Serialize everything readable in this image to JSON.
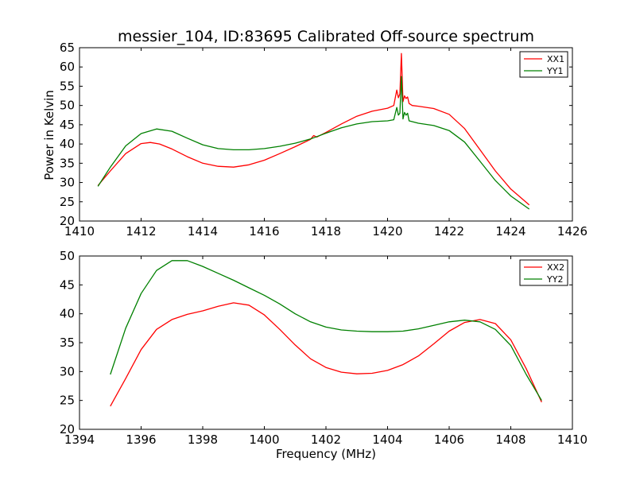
{
  "title": "messier_104, ID:83695 Calibrated Off-source spectrum",
  "ylabel": "Power in Kelvin",
  "xlabel": "Frequency (MHz)",
  "colors": {
    "red": "#ff0000",
    "green": "#008000",
    "axis": "#000000"
  },
  "chart_data": [
    {
      "type": "line",
      "title": "messier_104, ID:83695 Calibrated Off-source spectrum",
      "xlabel": "",
      "ylabel": "Power in Kelvin",
      "xlim": [
        1410,
        1426
      ],
      "ylim": [
        20,
        65
      ],
      "xticks": [
        1410,
        1412,
        1414,
        1416,
        1418,
        1420,
        1422,
        1424,
        1426
      ],
      "yticks": [
        20,
        25,
        30,
        35,
        40,
        45,
        50,
        55,
        60,
        65
      ],
      "legend": "top-right",
      "grid": false,
      "series": [
        {
          "name": "XX1",
          "color": "#ff0000",
          "x": [
            1410.6,
            1411.0,
            1411.5,
            1412.0,
            1412.3,
            1412.6,
            1413.0,
            1413.5,
            1414.0,
            1414.5,
            1415.0,
            1415.5,
            1416.0,
            1416.5,
            1417.0,
            1417.5,
            1417.6,
            1417.7,
            1418.0,
            1418.5,
            1419.0,
            1419.5,
            1420.0,
            1420.2,
            1420.3,
            1420.35,
            1420.4,
            1420.45,
            1420.5,
            1420.55,
            1420.6,
            1420.65,
            1420.7,
            1420.8,
            1421.0,
            1421.5,
            1422.0,
            1422.5,
            1423.0,
            1423.5,
            1424.0,
            1424.6
          ],
          "y": [
            29.2,
            33.0,
            37.5,
            40.1,
            40.4,
            40.0,
            38.7,
            36.7,
            35.0,
            34.2,
            34.0,
            34.6,
            35.8,
            37.5,
            39.3,
            41.2,
            42.2,
            41.8,
            43.0,
            45.2,
            47.2,
            48.5,
            49.3,
            50.0,
            54.0,
            52.0,
            53.0,
            63.5,
            51.0,
            52.5,
            51.8,
            52.2,
            50.5,
            50.0,
            49.8,
            49.2,
            47.7,
            44.0,
            38.5,
            33.0,
            28.3,
            24.2
          ]
        },
        {
          "name": "YY1",
          "color": "#008000",
          "x": [
            1410.6,
            1411.0,
            1411.5,
            1412.0,
            1412.5,
            1413.0,
            1413.5,
            1414.0,
            1414.5,
            1415.0,
            1415.5,
            1416.0,
            1416.5,
            1417.0,
            1417.5,
            1418.0,
            1418.5,
            1419.0,
            1419.5,
            1420.0,
            1420.2,
            1420.3,
            1420.35,
            1420.4,
            1420.45,
            1420.5,
            1420.55,
            1420.6,
            1420.65,
            1420.7,
            1420.8,
            1421.0,
            1421.5,
            1422.0,
            1422.5,
            1423.0,
            1423.5,
            1424.0,
            1424.6
          ],
          "y": [
            29.0,
            34.0,
            39.5,
            42.7,
            43.9,
            43.3,
            41.5,
            39.8,
            38.8,
            38.5,
            38.5,
            38.8,
            39.4,
            40.2,
            41.3,
            42.8,
            44.2,
            45.2,
            45.8,
            46.0,
            46.3,
            49.5,
            47.5,
            48.0,
            57.5,
            46.5,
            48.2,
            47.5,
            48.0,
            46.0,
            45.8,
            45.4,
            44.8,
            43.5,
            40.5,
            35.5,
            30.5,
            26.5,
            23.1
          ]
        }
      ]
    },
    {
      "type": "line",
      "title": "",
      "xlabel": "Frequency (MHz)",
      "ylabel": "",
      "xlim": [
        1394,
        1410
      ],
      "ylim": [
        20,
        50
      ],
      "xticks": [
        1394,
        1396,
        1398,
        1400,
        1402,
        1404,
        1406,
        1408,
        1410
      ],
      "yticks": [
        20,
        25,
        30,
        35,
        40,
        45,
        50
      ],
      "legend": "top-right",
      "grid": false,
      "series": [
        {
          "name": "XX2",
          "color": "#ff0000",
          "x": [
            1395.0,
            1395.5,
            1396.0,
            1396.5,
            1397.0,
            1397.5,
            1398.0,
            1398.5,
            1399.0,
            1399.5,
            1400.0,
            1400.5,
            1401.0,
            1401.5,
            1402.0,
            1402.5,
            1403.0,
            1403.5,
            1404.0,
            1404.5,
            1405.0,
            1405.5,
            1406.0,
            1406.5,
            1407.0,
            1407.5,
            1408.0,
            1408.5,
            1409.0
          ],
          "y": [
            24.0,
            28.8,
            33.8,
            37.3,
            39.0,
            39.9,
            40.5,
            41.3,
            41.9,
            41.5,
            39.8,
            37.3,
            34.6,
            32.2,
            30.7,
            29.9,
            29.6,
            29.7,
            30.2,
            31.2,
            32.7,
            34.8,
            37.0,
            38.5,
            39.0,
            38.3,
            35.5,
            30.5,
            24.7
          ]
        },
        {
          "name": "YY2",
          "color": "#008000",
          "x": [
            1395.0,
            1395.5,
            1396.0,
            1396.5,
            1397.0,
            1397.5,
            1398.0,
            1398.5,
            1399.0,
            1399.5,
            1400.0,
            1400.5,
            1401.0,
            1401.5,
            1402.0,
            1402.5,
            1403.0,
            1403.5,
            1404.0,
            1404.5,
            1405.0,
            1405.5,
            1406.0,
            1406.5,
            1407.0,
            1407.5,
            1408.0,
            1408.5,
            1409.0
          ],
          "y": [
            29.5,
            37.5,
            43.5,
            47.5,
            49.2,
            49.2,
            48.2,
            47.0,
            45.8,
            44.5,
            43.2,
            41.7,
            40.0,
            38.6,
            37.7,
            37.2,
            37.0,
            36.9,
            36.9,
            37.0,
            37.4,
            38.0,
            38.6,
            38.9,
            38.6,
            37.3,
            34.5,
            29.5,
            25.0
          ]
        }
      ]
    }
  ]
}
